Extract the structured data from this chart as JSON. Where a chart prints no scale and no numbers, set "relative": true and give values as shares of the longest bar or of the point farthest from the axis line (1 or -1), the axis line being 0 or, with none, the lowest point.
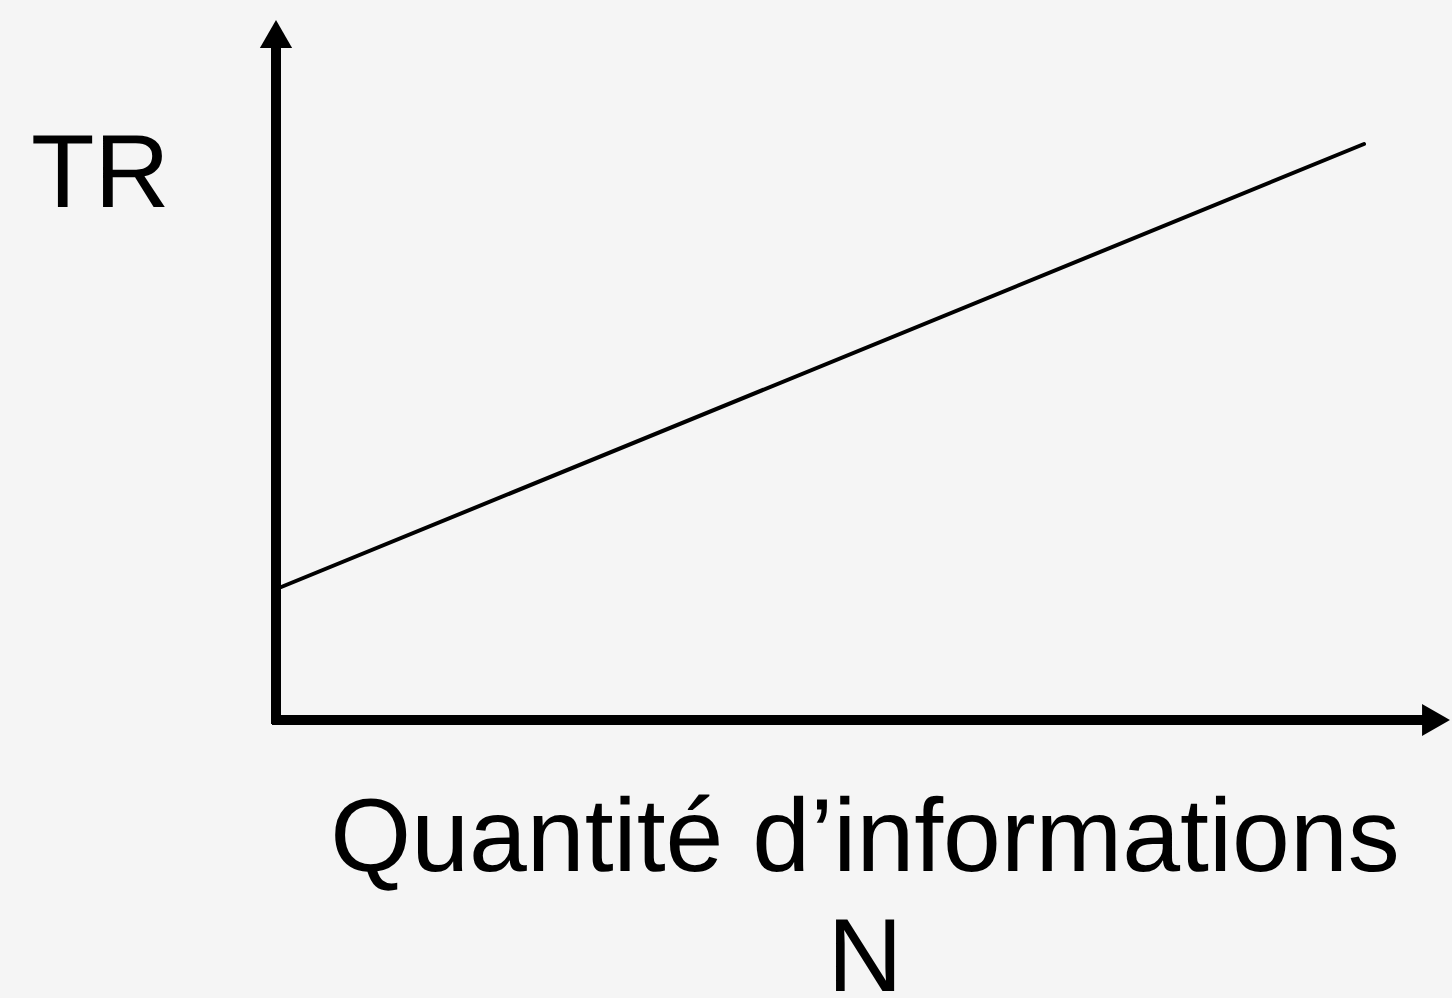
{
  "chart_data": {
    "type": "line",
    "xlabel": "Quantité d’informations\nN",
    "ylabel": "TR",
    "categories": [
      null,
      null
    ],
    "series": [
      {
        "color": "#000000",
        "values": [
          0.23,
          1
        ]
      }
    ],
    "relative": true
  }
}
